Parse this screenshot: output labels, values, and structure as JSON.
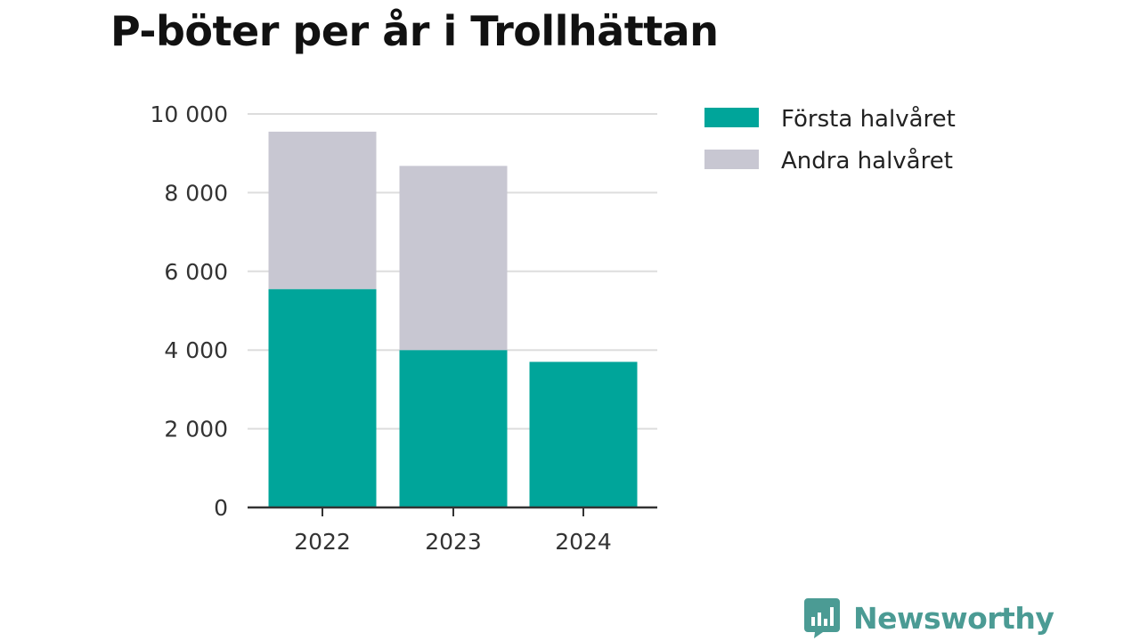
{
  "title": "P-böter per år i Trollhättan",
  "brand": "Newsworthy",
  "colors": {
    "first_half": "#00a59a",
    "second_half": "#c8c7d2",
    "grid": "#dddddd",
    "axis": "#333333",
    "brand": "#4b9b94"
  },
  "chart_data": {
    "type": "bar",
    "stacked": true,
    "title": "P-böter per år i Trollhättan",
    "categories": [
      "2022",
      "2023",
      "2024"
    ],
    "series": [
      {
        "name": "Första halvåret",
        "values": [
          5550,
          4000,
          3700
        ]
      },
      {
        "name": "Andra halvåret",
        "values": [
          4000,
          4680,
          null
        ]
      }
    ],
    "y_ticks": [
      "0",
      "2 000",
      "4 000",
      "6 000",
      "8 000",
      "10 000"
    ],
    "ylim": [
      0,
      10000
    ],
    "grid": true,
    "legend_position": "top-right"
  }
}
